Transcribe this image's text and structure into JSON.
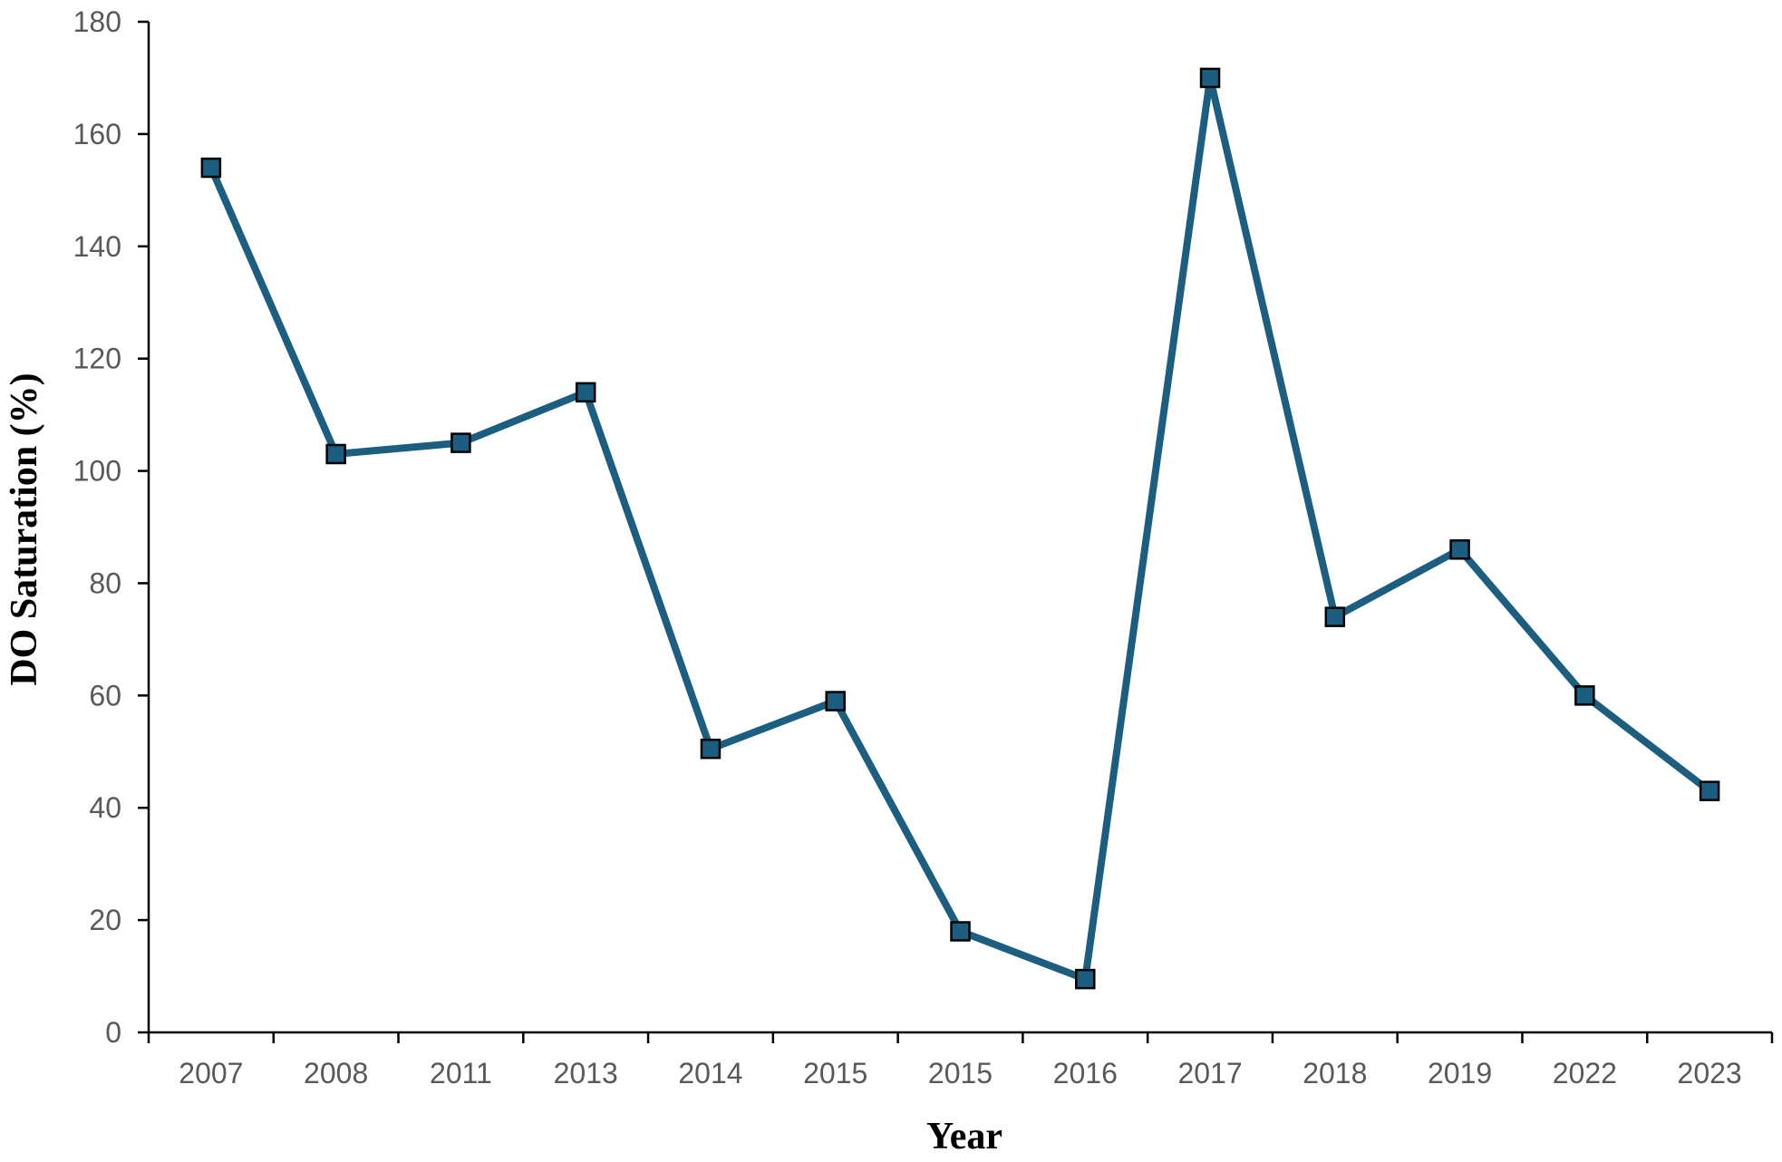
{
  "chart_data": {
    "type": "line",
    "title": "",
    "xlabel": "Year",
    "ylabel": "DO Saturation (%)",
    "categories": [
      "2007",
      "2008",
      "2011",
      "2013",
      "2014",
      "2015",
      "2015",
      "2016",
      "2017",
      "2018",
      "2019",
      "2022",
      "2023"
    ],
    "series": [
      {
        "values": [
          154,
          103,
          105,
          114,
          50.5,
          59,
          18,
          9.5,
          170,
          74,
          86,
          60,
          43
        ]
      }
    ],
    "ylim": [
      0,
      180
    ],
    "yticks": [
      "0",
      "20",
      "40",
      "60",
      "80",
      "100",
      "120",
      "140",
      "160",
      "180"
    ],
    "grid": false,
    "legend": "none",
    "colors": {
      "line": "#1b5e80",
      "marker_fill": "#1b5e80",
      "marker_stroke": "#000000"
    },
    "marker": "square"
  }
}
